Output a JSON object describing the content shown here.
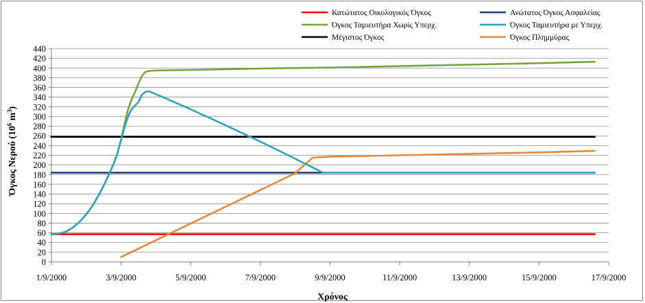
{
  "chart_data": {
    "type": "line",
    "title": "",
    "xlabel": "Χρόνος",
    "ylabel": "Όγκος Νερού (10⁶ m³)",
    "ylabel_parts": {
      "main": "Όγκος Νερού (10",
      "exp1": "6",
      "mid": " m",
      "exp2": "3",
      "end": ")"
    },
    "xlim": [
      0,
      16
    ],
    "ylim": [
      0,
      440
    ],
    "x_axis_dates": [
      "1/9/2000",
      "3/9/2000",
      "5/9/2000",
      "7/9/2000",
      "9/9/2000",
      "11/9/2000",
      "13/9/2000",
      "15/9/2000",
      "17/9/2000"
    ],
    "x_tick_days": [
      0,
      2,
      4,
      6,
      8,
      10,
      12,
      14,
      16
    ],
    "y_ticks": [
      0,
      20,
      40,
      60,
      80,
      100,
      120,
      140,
      160,
      180,
      200,
      220,
      240,
      260,
      280,
      300,
      320,
      340,
      360,
      380,
      400,
      420,
      440
    ],
    "grid": "horizontal",
    "legend_position": "top",
    "series": [
      {
        "name": "Κατώτατος Οικολογικός Όγκος",
        "color": "#ff0000",
        "x": [
          0,
          15.6
        ],
        "y": [
          57,
          57
        ]
      },
      {
        "name": "Ανώτατος Όγκος Ασφαλείας",
        "color": "#1f3a6e",
        "x": [
          0,
          15.6
        ],
        "y": [
          184,
          184
        ]
      },
      {
        "name": "Όγκος Ταμιευτήρα Χωρίς Υπερχ.",
        "color": "#77a33f",
        "x": [
          0,
          0.2,
          0.4,
          0.6,
          0.8,
          1.0,
          1.2,
          1.4,
          1.6,
          1.8,
          1.9,
          2.0,
          2.1,
          2.2,
          2.3,
          2.4,
          2.5,
          2.6,
          2.7,
          2.8,
          3.0,
          4,
          6,
          8,
          10,
          12,
          14,
          15.6
        ],
        "y": [
          57,
          58,
          62,
          70,
          82,
          98,
          118,
          143,
          172,
          205,
          225,
          252,
          285,
          315,
          335,
          350,
          368,
          384,
          392,
          394,
          395,
          396,
          399,
          401,
          404,
          407,
          410,
          413
        ]
      },
      {
        "name": "Όγκος Ταμιευτήρα με Υπερχ.",
        "color": "#31a1b8",
        "x": [
          0,
          0.2,
          0.4,
          0.6,
          0.8,
          1.0,
          1.2,
          1.4,
          1.6,
          1.8,
          1.9,
          2.0,
          2.1,
          2.2,
          2.3,
          2.4,
          2.5,
          2.6,
          2.7,
          2.8,
          3.2,
          4.0,
          5.0,
          6.0,
          6.8,
          7.8,
          10,
          12,
          14,
          15.6
        ],
        "y": [
          57,
          58,
          62,
          70,
          82,
          98,
          118,
          143,
          172,
          205,
          225,
          252,
          278,
          300,
          315,
          322,
          330,
          345,
          351,
          352,
          340,
          315,
          282,
          248,
          220,
          184,
          184,
          184,
          184,
          184
        ]
      },
      {
        "name": "Μέγιστος Όγκος",
        "color": "#000000",
        "x": [
          0,
          15.6
        ],
        "y": [
          258,
          258
        ]
      },
      {
        "name": "Όγκος Πλημμύρας",
        "color": "#e8883a",
        "x": [
          2.0,
          7.0,
          7.5,
          8.0,
          10,
          12,
          14,
          15.6
        ],
        "y": [
          10,
          183,
          215,
          217,
          220,
          223,
          226,
          229
        ]
      }
    ]
  }
}
